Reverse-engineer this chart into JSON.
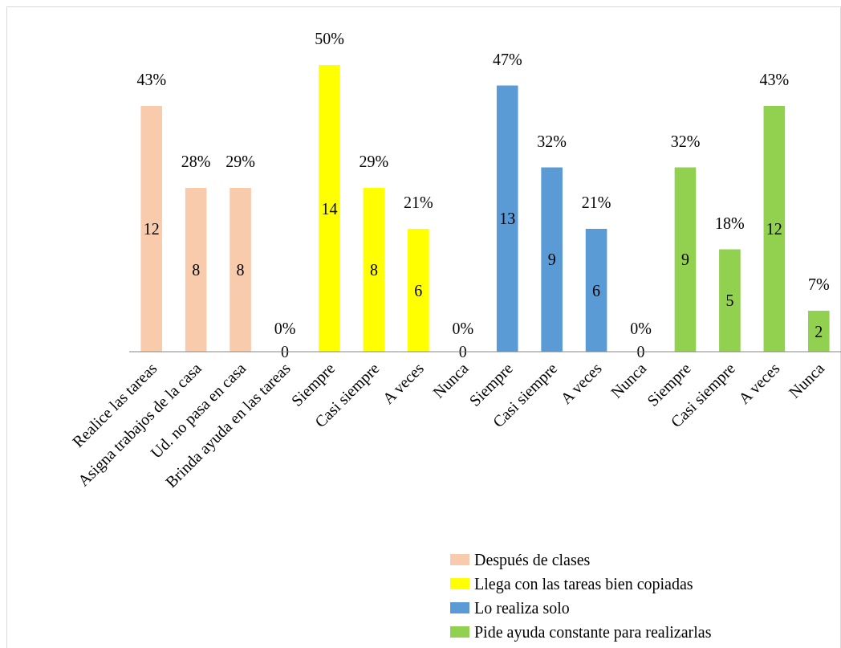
{
  "chart_data": {
    "type": "bar",
    "categories": [
      "Realice las tareas",
      "Asigna trabajos de la casa",
      "Ud. no pasa en casa",
      "Brinda  ayuda en las tareas",
      "Siempre",
      "Casi siempre",
      "A veces",
      "Nunca",
      "Siempre",
      "Casi siempre",
      "A veces",
      "Nunca",
      "Siempre",
      "Casi siempre",
      "A veces",
      "Nunca"
    ],
    "series": [
      {
        "name": "Después de clases",
        "color": "#f8cbad",
        "values": [
          12,
          8,
          8,
          0,
          null,
          null,
          null,
          null,
          null,
          null,
          null,
          null,
          null,
          null,
          null,
          null
        ]
      },
      {
        "name": "Llega con las tareas bien copiadas",
        "color": "#ffff00",
        "values": [
          null,
          null,
          null,
          null,
          14,
          8,
          6,
          0,
          null,
          null,
          null,
          null,
          null,
          null,
          null,
          null
        ]
      },
      {
        "name": "Lo realiza solo",
        "color": "#5b9bd5",
        "values": [
          null,
          null,
          null,
          null,
          null,
          null,
          null,
          null,
          13,
          9,
          6,
          0,
          null,
          null,
          null,
          null
        ]
      },
      {
        "name": "Pide ayuda constante  para realizarlas",
        "color": "#92d050",
        "values": [
          null,
          null,
          null,
          null,
          null,
          null,
          null,
          null,
          null,
          null,
          null,
          null,
          9,
          5,
          12,
          2
        ]
      }
    ],
    "annotations": [
      "43%",
      "28%",
      "29%",
      "0%",
      "50%",
      "29%",
      "21%",
      "0%",
      "47%",
      "32%",
      "21%",
      "0%",
      "32%",
      "18%",
      "43%",
      "7%"
    ],
    "data_labels": true,
    "legend": "bottom right"
  }
}
